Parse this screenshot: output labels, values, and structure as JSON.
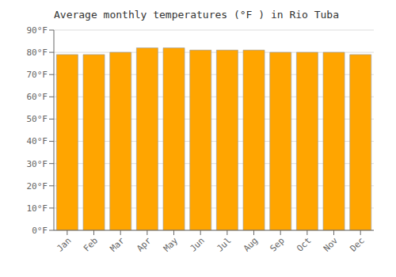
{
  "chart_data": {
    "type": "bar",
    "title": "Average monthly temperatures (°F ) in Rio Tuba",
    "categories": [
      "Jan",
      "Feb",
      "Mar",
      "Apr",
      "May",
      "Jun",
      "Jul",
      "Aug",
      "Sep",
      "Oct",
      "Nov",
      "Dec"
    ],
    "values": [
      79,
      79,
      80,
      82,
      82,
      81,
      81,
      81,
      80,
      80,
      80,
      79
    ],
    "color": "#FFA500",
    "ylim": [
      0,
      90
    ],
    "yticks": [
      {
        "value": 0,
        "label": "0°F"
      },
      {
        "value": 10,
        "label": "10°F"
      },
      {
        "value": 20,
        "label": "20°F"
      },
      {
        "value": 30,
        "label": "30°F"
      },
      {
        "value": 40,
        "label": "40°F"
      },
      {
        "value": 50,
        "label": "50°F"
      },
      {
        "value": 60,
        "label": "60°F"
      },
      {
        "value": 70,
        "label": "70°F"
      },
      {
        "value": 80,
        "label": "80°F"
      },
      {
        "value": 90,
        "label": "90°F"
      }
    ],
    "grid": true
  }
}
